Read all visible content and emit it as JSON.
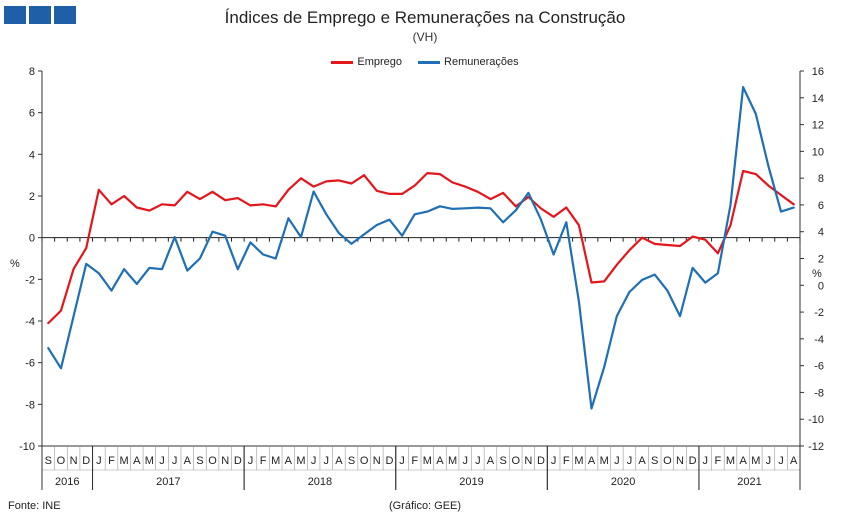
{
  "logo_icon": "ine-logo-squares",
  "colors": {
    "emprego": "#e3161b",
    "remuneracoes": "#1f6fb5",
    "logo": "#1f5fa8"
  },
  "chart_data": {
    "type": "line",
    "title": "Índices de Emprego e Remunerações na Construção",
    "subtitle": "(VH)",
    "ylabel_left": "%",
    "ylabel_right": "%",
    "source": "Fonte: INE",
    "credit": "(Gráfico: GEE)",
    "legend_position": "top-center",
    "y_left": {
      "min": -10,
      "max": 8,
      "ticks": [
        "8",
        "6",
        "4",
        "2",
        "0",
        "-2",
        "-4",
        "-6",
        "-8",
        "-10"
      ]
    },
    "y_right": {
      "min": -12,
      "max": 16,
      "ticks": [
        "16",
        "14",
        "12",
        "10",
        "8",
        "6",
        "4",
        "2",
        "0",
        "-2",
        "-4",
        "-6",
        "-8",
        "-10",
        "-12"
      ]
    },
    "months": [
      "S",
      "O",
      "N",
      "D",
      "J",
      "F",
      "M",
      "A",
      "M",
      "J",
      "J",
      "A",
      "S",
      "O",
      "N",
      "D",
      "J",
      "F",
      "M",
      "A",
      "M",
      "J",
      "J",
      "A",
      "S",
      "O",
      "N",
      "D",
      "J",
      "F",
      "M",
      "A",
      "M",
      "J",
      "J",
      "A",
      "S",
      "O",
      "N",
      "D",
      "J",
      "F",
      "M",
      "A",
      "M",
      "J",
      "J",
      "A",
      "S",
      "O",
      "N",
      "D",
      "J",
      "F",
      "M",
      "A",
      "M",
      "J",
      "J",
      "A"
    ],
    "years": [
      {
        "label": "2016",
        "start": 0,
        "count": 4
      },
      {
        "label": "2017",
        "start": 4,
        "count": 12
      },
      {
        "label": "2018",
        "start": 16,
        "count": 12
      },
      {
        "label": "2019",
        "start": 28,
        "count": 12
      },
      {
        "label": "2020",
        "start": 40,
        "count": 12
      },
      {
        "label": "2021",
        "start": 52,
        "count": 8
      }
    ],
    "series": [
      {
        "name": "Emprego",
        "axis": "left",
        "values": [
          -4.1,
          -3.5,
          -1.5,
          -0.5,
          2.3,
          1.6,
          2.0,
          1.45,
          1.3,
          1.6,
          1.55,
          2.2,
          1.85,
          2.2,
          1.8,
          1.9,
          1.55,
          1.6,
          1.5,
          2.3,
          2.85,
          2.45,
          2.7,
          2.75,
          2.6,
          3.0,
          2.25,
          2.1,
          2.1,
          2.5,
          3.1,
          3.05,
          2.65,
          2.45,
          2.2,
          1.85,
          2.15,
          1.5,
          1.95,
          1.4,
          1.0,
          1.45,
          0.6,
          -2.15,
          -2.1,
          -1.3,
          -0.6,
          0.0,
          -0.3,
          -0.35,
          -0.4,
          0.05,
          -0.1,
          -0.75,
          0.6,
          3.2,
          3.05,
          2.5,
          2.05,
          1.6
        ]
      },
      {
        "name": "Remunerações",
        "axis": "right",
        "values": [
          -4.7,
          -6.2,
          -2.3,
          1.6,
          0.9,
          -0.4,
          1.2,
          0.1,
          1.3,
          1.2,
          3.6,
          1.1,
          2.0,
          4.0,
          3.7,
          1.2,
          3.2,
          2.3,
          2.0,
          5.0,
          3.6,
          7.0,
          5.3,
          3.9,
          3.1,
          3.8,
          4.5,
          4.9,
          3.7,
          5.3,
          5.5,
          5.9,
          5.7,
          5.75,
          5.8,
          5.75,
          4.7,
          5.6,
          6.9,
          4.9,
          2.3,
          4.7,
          -1.2,
          -9.2,
          -6.1,
          -2.3,
          -0.5,
          0.4,
          0.8,
          -0.4,
          -2.3,
          1.3,
          0.2,
          0.9,
          6.0,
          14.8,
          12.8,
          8.9,
          5.5,
          5.8
        ]
      }
    ]
  }
}
